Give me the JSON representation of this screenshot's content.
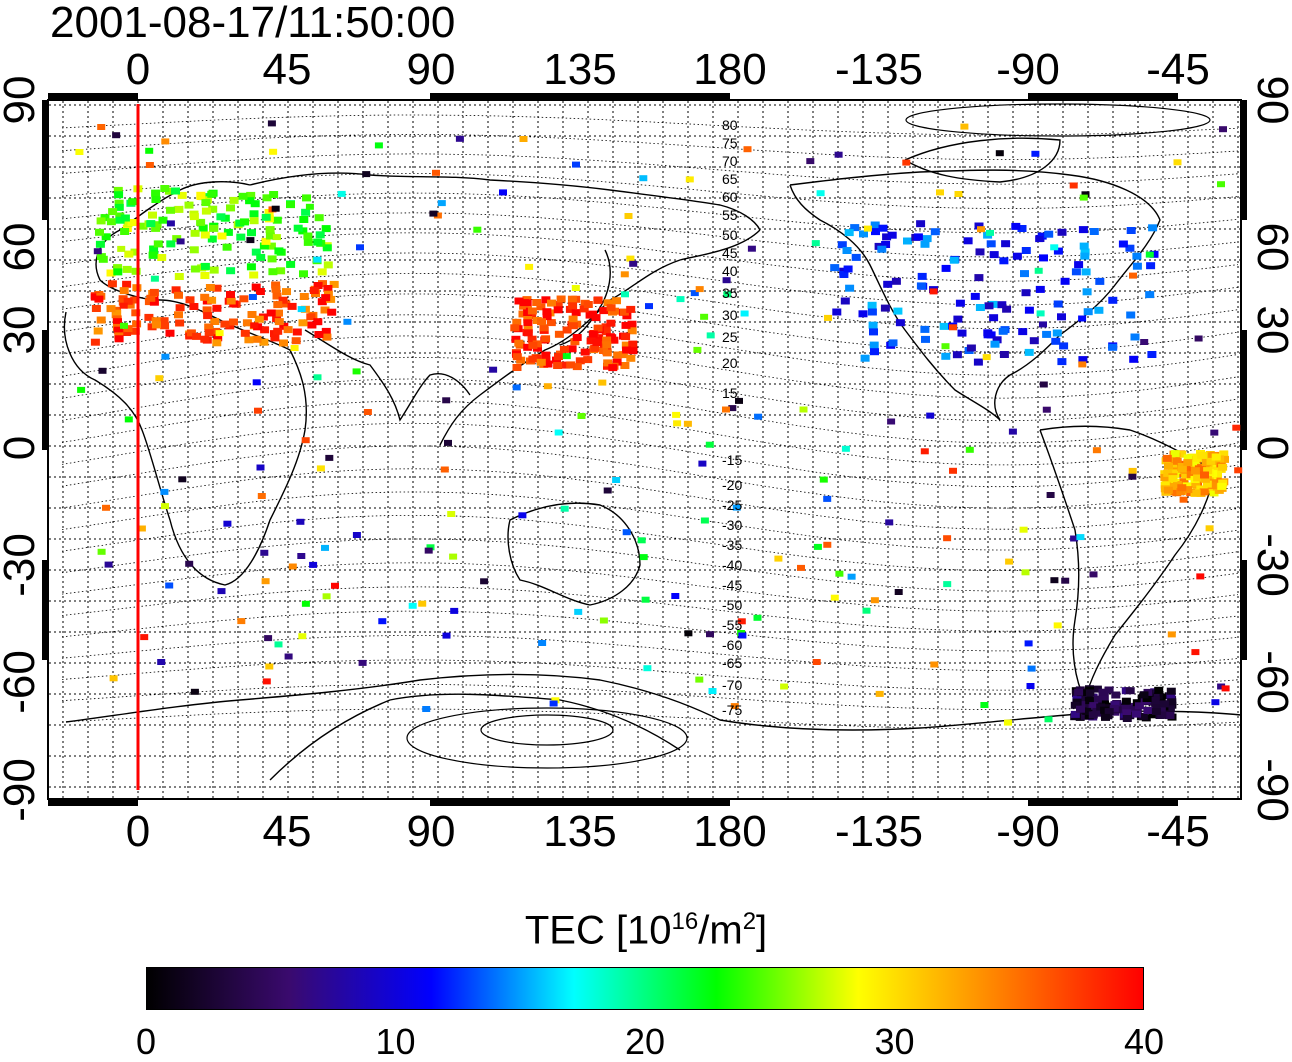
{
  "title": "2001-08-17/11:50:00",
  "map": {
    "lon_ticks": [
      "0",
      "45",
      "90",
      "135",
      "180",
      "-135",
      "-90",
      "-45"
    ],
    "lat_ticks": [
      "90",
      "60",
      "30",
      "0",
      "-30",
      "-60",
      "-90"
    ],
    "contour_labels": [
      "80",
      "75",
      "70",
      "65",
      "60",
      "55",
      "50",
      "45",
      "40",
      "35",
      "30",
      "25",
      "20",
      "15",
      "-15",
      "-20",
      "-25",
      "-30",
      "-35",
      "-40",
      "-45",
      "-50",
      "-55",
      "-60",
      "-65",
      "-70",
      "-75"
    ],
    "subsolar_longitude_marker_color": "#ff0000",
    "coastline_color": "#000000"
  },
  "colorbar": {
    "title_prefix": "TEC  [10",
    "title_exp1": "16",
    "title_mid": "/m",
    "title_exp2": "2",
    "title_suffix": "]",
    "min": 0,
    "max": 40,
    "ticks": [
      "0",
      "10",
      "20",
      "30",
      "40"
    ],
    "colors": [
      "#000000",
      "#3a0a6e",
      "#0000ff",
      "#00ffff",
      "#00ff00",
      "#ffff00",
      "#ff7f00",
      "#ff0000"
    ]
  },
  "tec_regions": [
    {
      "name": "europe",
      "tec": 25
    },
    {
      "name": "mediterranean",
      "tec": 37
    },
    {
      "name": "japan-south",
      "tec": 38
    },
    {
      "name": "north-america",
      "tec": 12
    },
    {
      "name": "south-america-east",
      "tec": 32
    },
    {
      "name": "antarctic",
      "tec": 3
    }
  ]
}
